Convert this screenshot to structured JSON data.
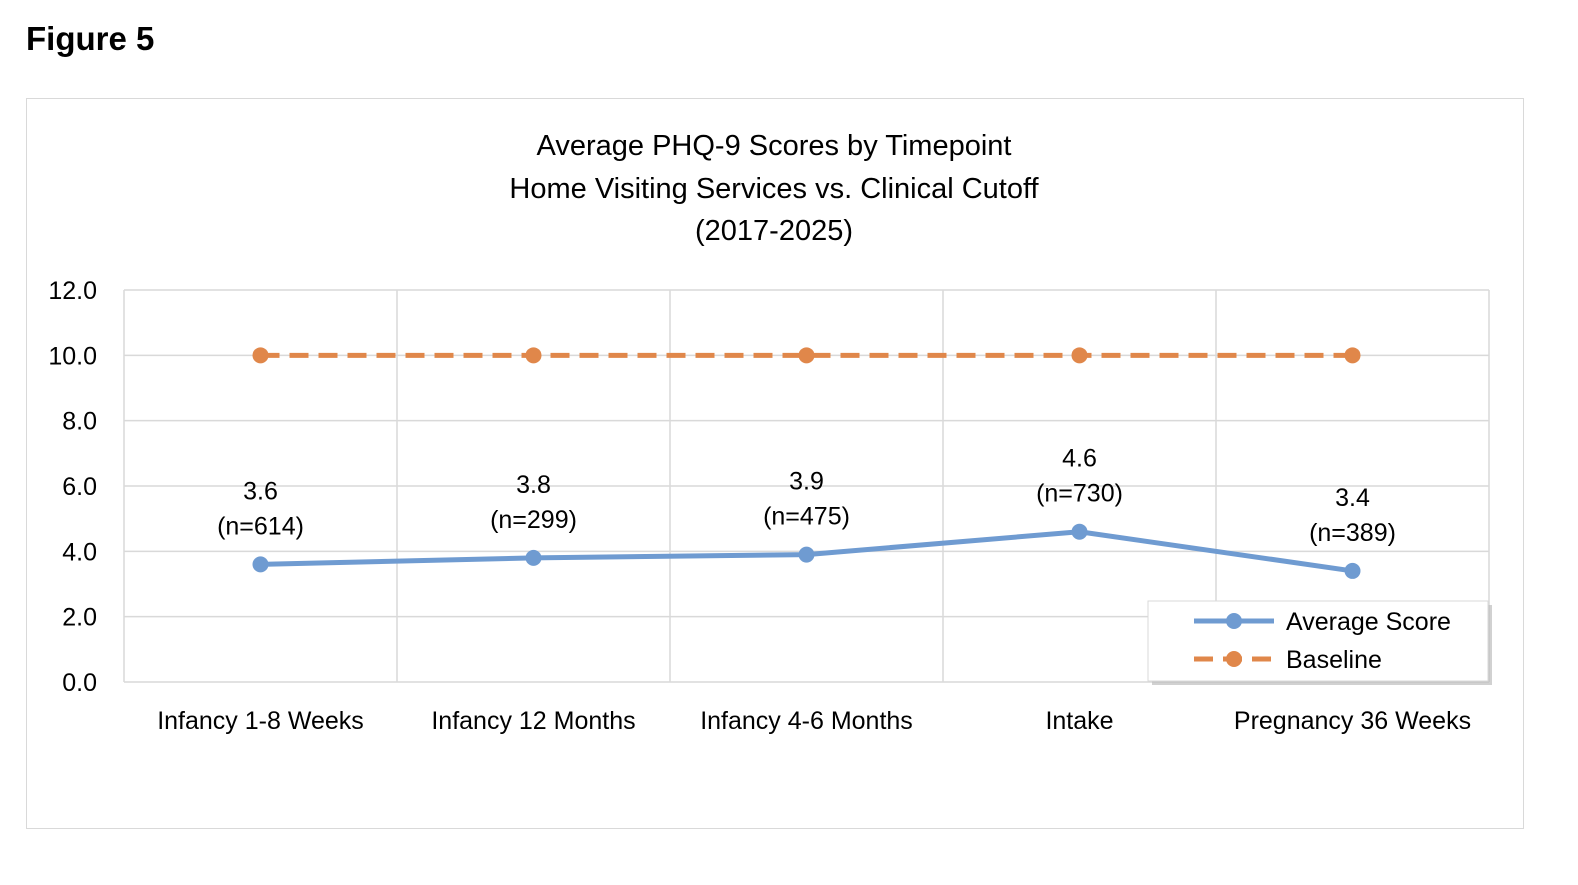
{
  "figure_label": "Figure 5",
  "chart_data": {
    "type": "line",
    "title_lines": [
      "Average PHQ-9 Scores by Timepoint",
      "Home Visiting Services vs. Clinical Cutoff",
      "(2017-2025)"
    ],
    "categories": [
      "Infancy 1-8 Weeks",
      "Infancy 12 Months",
      "Infancy 4-6 Months",
      "Intake",
      "Pregnancy 36 Weeks"
    ],
    "ylim": [
      0,
      12
    ],
    "y_ticks": [
      "0.0",
      "2.0",
      "4.0",
      "6.0",
      "8.0",
      "10.0",
      "12.0"
    ],
    "grid": true,
    "legend_position": "bottom-right",
    "series": [
      {
        "name": "Average Score",
        "color": "#6f9bd1",
        "style": "solid",
        "values": [
          3.6,
          3.8,
          3.9,
          4.6,
          3.4
        ],
        "data_labels": [
          "3.6",
          "3.8",
          "3.9",
          "4.6",
          "3.4"
        ],
        "n_labels": [
          "(n=614)",
          "(n=299)",
          "(n=475)",
          "(n=730)",
          "(n=389)"
        ]
      },
      {
        "name": "Baseline",
        "color": "#e0874a",
        "style": "dashed",
        "values": [
          10,
          10,
          10,
          10,
          10
        ]
      }
    ]
  }
}
